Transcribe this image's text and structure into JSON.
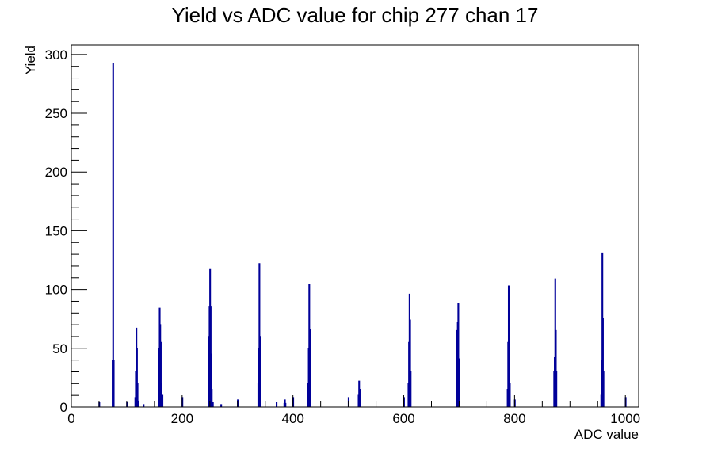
{
  "chart_data": {
    "type": "histogram",
    "title": "Yield vs ADC value for chip 277 chan 17",
    "xlabel": "ADC value",
    "ylabel": "Yield",
    "xlim": [
      0,
      1024
    ],
    "ylim": [
      0,
      308
    ],
    "x_ticks": [
      0,
      200,
      400,
      600,
      800,
      1000
    ],
    "y_ticks": [
      0,
      50,
      100,
      150,
      200,
      250,
      300
    ],
    "bin_width": 1,
    "grid": false,
    "legend": "none",
    "series": [
      {
        "color": "#000099",
        "bins": [
          {
            "x": 50,
            "y": 4
          },
          {
            "x": 74,
            "y": 40
          },
          {
            "x": 75,
            "y": 292
          },
          {
            "x": 76,
            "y": 40
          },
          {
            "x": 100,
            "y": 4
          },
          {
            "x": 115,
            "y": 8
          },
          {
            "x": 116,
            "y": 30
          },
          {
            "x": 117,
            "y": 67
          },
          {
            "x": 118,
            "y": 50
          },
          {
            "x": 119,
            "y": 20
          },
          {
            "x": 120,
            "y": 5
          },
          {
            "x": 130,
            "y": 2
          },
          {
            "x": 157,
            "y": 10
          },
          {
            "x": 158,
            "y": 50
          },
          {
            "x": 159,
            "y": 84
          },
          {
            "x": 160,
            "y": 70
          },
          {
            "x": 161,
            "y": 55
          },
          {
            "x": 162,
            "y": 20
          },
          {
            "x": 164,
            "y": 10
          },
          {
            "x": 200,
            "y": 8
          },
          {
            "x": 247,
            "y": 15
          },
          {
            "x": 248,
            "y": 60
          },
          {
            "x": 249,
            "y": 85
          },
          {
            "x": 250,
            "y": 117
          },
          {
            "x": 251,
            "y": 85
          },
          {
            "x": 252,
            "y": 45
          },
          {
            "x": 253,
            "y": 15
          },
          {
            "x": 255,
            "y": 4
          },
          {
            "x": 270,
            "y": 2
          },
          {
            "x": 300,
            "y": 6
          },
          {
            "x": 337,
            "y": 20
          },
          {
            "x": 338,
            "y": 50
          },
          {
            "x": 339,
            "y": 122
          },
          {
            "x": 340,
            "y": 60
          },
          {
            "x": 341,
            "y": 25
          },
          {
            "x": 370,
            "y": 4
          },
          {
            "x": 384,
            "y": 3
          },
          {
            "x": 385,
            "y": 6
          },
          {
            "x": 386,
            "y": 3
          },
          {
            "x": 400,
            "y": 8
          },
          {
            "x": 427,
            "y": 20
          },
          {
            "x": 428,
            "y": 50
          },
          {
            "x": 429,
            "y": 104
          },
          {
            "x": 430,
            "y": 66
          },
          {
            "x": 431,
            "y": 25
          },
          {
            "x": 500,
            "y": 8
          },
          {
            "x": 518,
            "y": 10
          },
          {
            "x": 519,
            "y": 22
          },
          {
            "x": 520,
            "y": 15
          },
          {
            "x": 521,
            "y": 5
          },
          {
            "x": 600,
            "y": 8
          },
          {
            "x": 608,
            "y": 20
          },
          {
            "x": 609,
            "y": 55
          },
          {
            "x": 610,
            "y": 96
          },
          {
            "x": 611,
            "y": 74
          },
          {
            "x": 612,
            "y": 30
          },
          {
            "x": 696,
            "y": 65
          },
          {
            "x": 697,
            "y": 72
          },
          {
            "x": 698,
            "y": 88
          },
          {
            "x": 699,
            "y": 20
          },
          {
            "x": 700,
            "y": 41
          },
          {
            "x": 787,
            "y": 15
          },
          {
            "x": 788,
            "y": 55
          },
          {
            "x": 789,
            "y": 103
          },
          {
            "x": 790,
            "y": 60
          },
          {
            "x": 791,
            "y": 20
          },
          {
            "x": 800,
            "y": 6
          },
          {
            "x": 871,
            "y": 30
          },
          {
            "x": 872,
            "y": 42
          },
          {
            "x": 873,
            "y": 109
          },
          {
            "x": 874,
            "y": 65
          },
          {
            "x": 875,
            "y": 30
          },
          {
            "x": 956,
            "y": 10
          },
          {
            "x": 957,
            "y": 40
          },
          {
            "x": 958,
            "y": 131
          },
          {
            "x": 959,
            "y": 75
          },
          {
            "x": 960,
            "y": 30
          },
          {
            "x": 1000,
            "y": 8
          }
        ]
      }
    ]
  }
}
